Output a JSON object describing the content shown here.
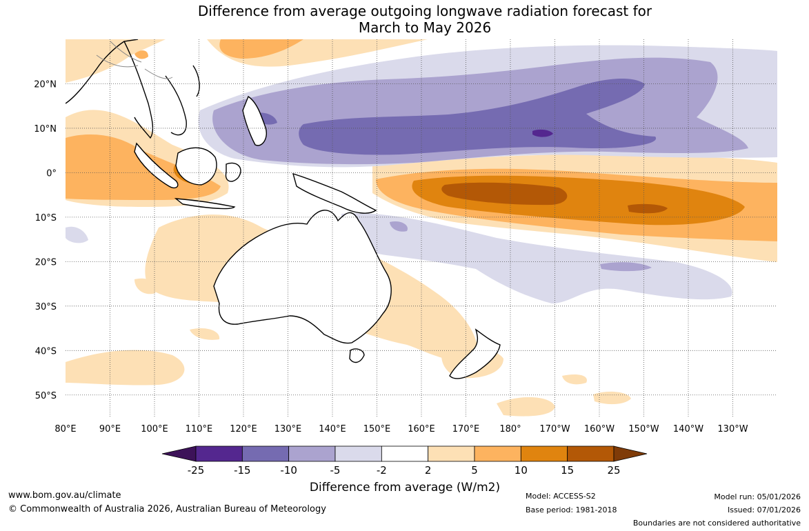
{
  "title": {
    "line1": "Difference from average outgoing longwave radiation forecast for",
    "line2": "March to May 2026"
  },
  "map": {
    "lon_ticks": [
      "80°E",
      "90°E",
      "100°E",
      "110°E",
      "120°E",
      "130°E",
      "140°E",
      "150°E",
      "160°E",
      "170°E",
      "180°",
      "170°W",
      "160°W",
      "150°W",
      "140°W",
      "130°W"
    ],
    "lat_ticks": [
      "20°N",
      "10°N",
      "0°",
      "10°S",
      "20°S",
      "30°S",
      "40°S",
      "50°S"
    ],
    "lon_range": [
      80,
      240
    ],
    "lat_range": [
      -55,
      30
    ]
  },
  "colorbar": {
    "label": "Difference from average (W/m2)",
    "ticks": [
      "-25",
      "-15",
      "-10",
      "-5",
      "-2",
      "2",
      "5",
      "10",
      "15",
      "25"
    ],
    "colors": [
      "#3d1259",
      "#54278f",
      "#756bb1",
      "#aba3cf",
      "#dadaeb",
      "#ffffff",
      "#fde0b5",
      "#fdb35f",
      "#e0840f",
      "#b35806",
      "#7f3b08"
    ]
  },
  "footer": {
    "url": "www.bom.gov.au/climate",
    "copyright": "© Commonwealth of Australia 2026, Australian Bureau of Meteorology",
    "model": "Model: ACCESS-S2",
    "base_period": "Base period: 1981-2018",
    "model_run": "Model run: 05/01/2026",
    "issued": "Issued: 07/01/2026",
    "disclaimer": "Boundaries are not considered authoritative"
  }
}
